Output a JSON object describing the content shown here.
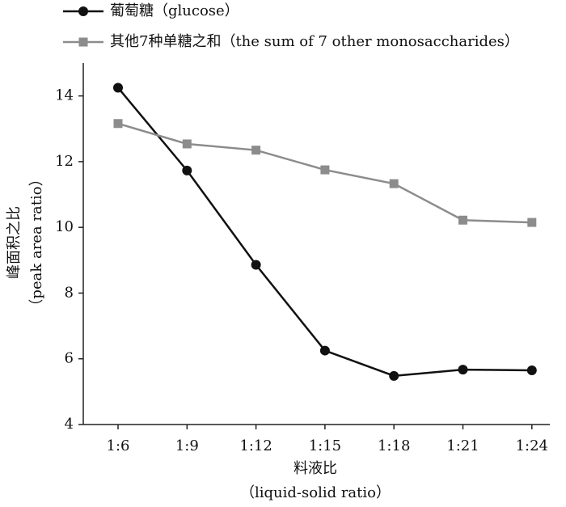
{
  "chart_data": {
    "type": "line",
    "categories": [
      "1:6",
      "1:9",
      "1:12",
      "1:15",
      "1:18",
      "1:21",
      "1:24"
    ],
    "series": [
      {
        "name": "葡萄糖（glucose）",
        "color": "#111111",
        "marker": "circle",
        "values": [
          14.25,
          11.73,
          8.86,
          6.25,
          5.48,
          5.67,
          5.65
        ]
      },
      {
        "name": "其他7种单糖之和（the sum of 7 other monosaccharides）",
        "color": "#8c8c8c",
        "marker": "square",
        "values": [
          13.16,
          12.54,
          12.35,
          11.75,
          11.33,
          10.22,
          10.15
        ]
      }
    ],
    "xlabel": [
      "料液比",
      "（liquid-solid ratio）"
    ],
    "ylabel": [
      "峰面积之比",
      "（peak area ratio）"
    ],
    "ylim": [
      4,
      15
    ],
    "yticks": [
      4,
      6,
      8,
      10,
      12,
      14
    ],
    "grid": false
  }
}
